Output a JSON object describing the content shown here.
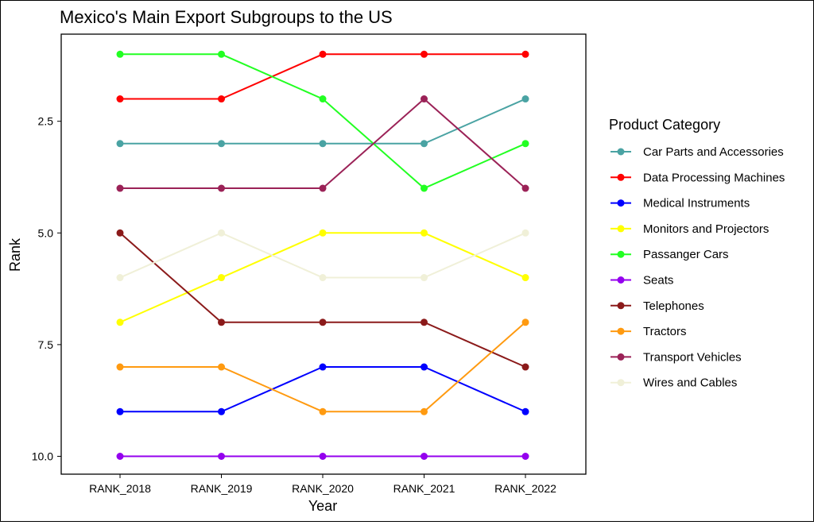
{
  "chart_data": {
    "type": "line",
    "title": "Mexico's Main Export Subgroups to the US",
    "xlabel": "Year",
    "ylabel": "Rank",
    "categories": [
      "RANK_2018",
      "RANK_2019",
      "RANK_2020",
      "RANK_2021",
      "RANK_2022"
    ],
    "y_reversed": true,
    "ylim": [
      0.55,
      10.4
    ],
    "yticks": [
      2.5,
      5.0,
      7.5,
      10.0
    ],
    "ytick_labels": [
      "2.5",
      "5.0",
      "7.5",
      "10.0"
    ],
    "grid": false,
    "legend": {
      "title": "Product Category",
      "position": "right"
    },
    "series": [
      {
        "name": "Car Parts and Accessories",
        "color": "#4aa3a3",
        "values": [
          3,
          3,
          3,
          3,
          2
        ]
      },
      {
        "name": "Data Processing Machines",
        "color": "#ff0000",
        "values": [
          2,
          2,
          1,
          1,
          1
        ]
      },
      {
        "name": "Medical Instruments",
        "color": "#0000ff",
        "values": [
          9,
          9,
          8,
          8,
          9
        ]
      },
      {
        "name": "Monitors and Projectors",
        "color": "#ffff00",
        "values": [
          7,
          6,
          5,
          5,
          6
        ]
      },
      {
        "name": "Passanger Cars",
        "color": "#22ff22",
        "values": [
          1,
          1,
          2,
          4,
          3
        ]
      },
      {
        "name": "Seats",
        "color": "#9400ee",
        "values": [
          10,
          10,
          10,
          10,
          10
        ]
      },
      {
        "name": "Telephones",
        "color": "#8b1a1a",
        "values": [
          5,
          7,
          7,
          7,
          8
        ]
      },
      {
        "name": "Tractors",
        "color": "#ff9a10",
        "values": [
          8,
          8,
          9,
          9,
          7
        ]
      },
      {
        "name": "Transport Vehicles",
        "color": "#9b2257",
        "values": [
          4,
          4,
          4,
          2,
          4
        ]
      },
      {
        "name": "Wires and Cables",
        "color": "#f0f0d8",
        "values": [
          6,
          5,
          6,
          6,
          5
        ]
      }
    ]
  }
}
